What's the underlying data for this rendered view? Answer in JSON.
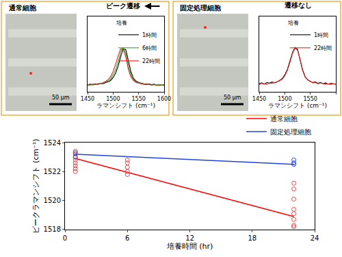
{
  "panels": [
    {
      "title": "通常細胞",
      "scale_bar": "50 μm"
    },
    {
      "title": "固定処理細胞",
      "scale_bar": "50 μm"
    }
  ],
  "chart_data": [
    {
      "type": "line",
      "title": "ピーク遷移",
      "x_label": "ラマンシフト (cm⁻¹)",
      "legend_title": "培養",
      "legend": "upper right",
      "x": [
        1450,
        1455,
        1460,
        1465,
        1470,
        1475,
        1480,
        1485,
        1490,
        1495,
        1500,
        1505,
        1510,
        1515,
        1520,
        1525,
        1530,
        1535,
        1540,
        1545,
        1550,
        1555,
        1560,
        1565,
        1570,
        1575,
        1580,
        1585,
        1590,
        1595,
        1600
      ],
      "xlim": [
        1450,
        1600
      ],
      "xticks": [
        1450,
        1500,
        1550,
        1600
      ],
      "ylim": [
        0,
        1.7
      ],
      "tick_labels": "x",
      "grid": false,
      "series": [
        {
          "name": "1時間",
          "color": "#000000",
          "values": [
            0.15,
            0.17,
            0.16,
            0.18,
            0.17,
            0.19,
            0.18,
            0.2,
            0.22,
            0.25,
            0.32,
            0.42,
            0.58,
            0.8,
            0.97,
            0.95,
            0.7,
            0.45,
            0.3,
            0.24,
            0.21,
            0.19,
            0.18,
            0.17,
            0.18,
            0.16,
            0.17,
            0.15,
            0.16,
            0.15,
            0.16
          ]
        },
        {
          "name": "6時間",
          "color": "#22aa22",
          "values": [
            0.14,
            0.16,
            0.15,
            0.17,
            0.16,
            0.18,
            0.19,
            0.21,
            0.24,
            0.29,
            0.38,
            0.5,
            0.68,
            0.9,
            1.0,
            0.86,
            0.58,
            0.38,
            0.27,
            0.22,
            0.2,
            0.18,
            0.17,
            0.16,
            0.17,
            0.15,
            0.16,
            0.15,
            0.14,
            0.15,
            0.15
          ]
        },
        {
          "name": "22時間",
          "color": "#ee2222",
          "values": [
            0.16,
            0.15,
            0.17,
            0.16,
            0.18,
            0.19,
            0.2,
            0.23,
            0.27,
            0.34,
            0.46,
            0.62,
            0.82,
            0.97,
            0.96,
            0.78,
            0.5,
            0.33,
            0.25,
            0.21,
            0.19,
            0.18,
            0.17,
            0.16,
            0.17,
            0.15,
            0.16,
            0.15,
            0.16,
            0.15,
            0.15
          ]
        }
      ]
    },
    {
      "type": "line",
      "title": "遷移なし",
      "x_label": "ラマンシフト (cm⁻¹)",
      "legend_title": "培養",
      "legend": "upper right",
      "x": [
        1450,
        1455,
        1460,
        1465,
        1470,
        1475,
        1480,
        1485,
        1490,
        1495,
        1500,
        1505,
        1510,
        1515,
        1520,
        1525,
        1530,
        1535,
        1540,
        1545,
        1550,
        1555,
        1560,
        1565,
        1570,
        1575,
        1580,
        1585,
        1590,
        1595,
        1600
      ],
      "xlim": [
        1450,
        1600
      ],
      "xticks": [
        1450,
        1500,
        1550,
        1600
      ],
      "ylim": [
        0,
        1.7
      ],
      "tick_labels": "x",
      "grid": false,
      "series": [
        {
          "name": "1時間",
          "color": "#000000",
          "values": [
            0.18,
            0.2,
            0.17,
            0.21,
            0.19,
            0.22,
            0.2,
            0.23,
            0.25,
            0.3,
            0.38,
            0.5,
            0.68,
            0.88,
            1.0,
            0.96,
            0.72,
            0.48,
            0.33,
            0.27,
            0.23,
            0.21,
            0.22,
            0.19,
            0.21,
            0.18,
            0.2,
            0.17,
            0.19,
            0.18,
            0.17
          ]
        },
        {
          "name": "22時間",
          "color": "#ee2222",
          "values": [
            0.16,
            0.19,
            0.18,
            0.17,
            0.2,
            0.19,
            0.21,
            0.22,
            0.26,
            0.28,
            0.36,
            0.48,
            0.66,
            0.86,
            0.98,
            0.94,
            0.74,
            0.5,
            0.34,
            0.26,
            0.24,
            0.2,
            0.21,
            0.18,
            0.2,
            0.19,
            0.17,
            0.18,
            0.16,
            0.18,
            0.17
          ]
        }
      ]
    },
    {
      "type": "scatter",
      "x_label": "培養時間 (hr)",
      "y_label": "ピークラマンシフト (cm⁻¹)",
      "legend": "upper right",
      "xlim": [
        0,
        24
      ],
      "xticks": [
        0,
        6,
        12,
        18,
        24
      ],
      "ylim": [
        1518,
        1524
      ],
      "yticks": [
        1518,
        1520,
        1522,
        1524
      ],
      "grid": false,
      "series": [
        {
          "name": "通常細胞",
          "type": "line",
          "color": "#ff0000",
          "x": [
            1,
            22
          ],
          "values": [
            1522.9,
            1518.9
          ]
        },
        {
          "name": "固定処理細胞",
          "type": "line",
          "color": "#2244dd",
          "x": [
            1,
            22
          ],
          "values": [
            1523.2,
            1522.5
          ]
        },
        {
          "name": "通常細胞",
          "type": "scatter",
          "marker": "circle-open",
          "color": "#e8474a",
          "x": [
            1,
            1,
            1,
            1,
            1,
            1,
            1,
            1,
            6,
            6,
            6,
            6,
            6,
            22,
            22,
            22,
            22,
            22,
            22,
            22,
            22
          ],
          "values": [
            1523.4,
            1523.2,
            1523.0,
            1522.8,
            1522.6,
            1522.4,
            1522.2,
            1522.0,
            1522.8,
            1522.6,
            1522.3,
            1522.0,
            1521.8,
            1521.2,
            1520.8,
            1520.1,
            1519.4,
            1519.1,
            1518.7,
            1518.3,
            1518.2
          ]
        },
        {
          "name": "固定処理細胞",
          "type": "scatter",
          "marker": "circle-open",
          "color": "#2244dd",
          "x": [
            1,
            1,
            22,
            22,
            22
          ],
          "values": [
            1523.3,
            1523.0,
            1522.8,
            1522.6,
            1522.5
          ]
        }
      ]
    }
  ]
}
